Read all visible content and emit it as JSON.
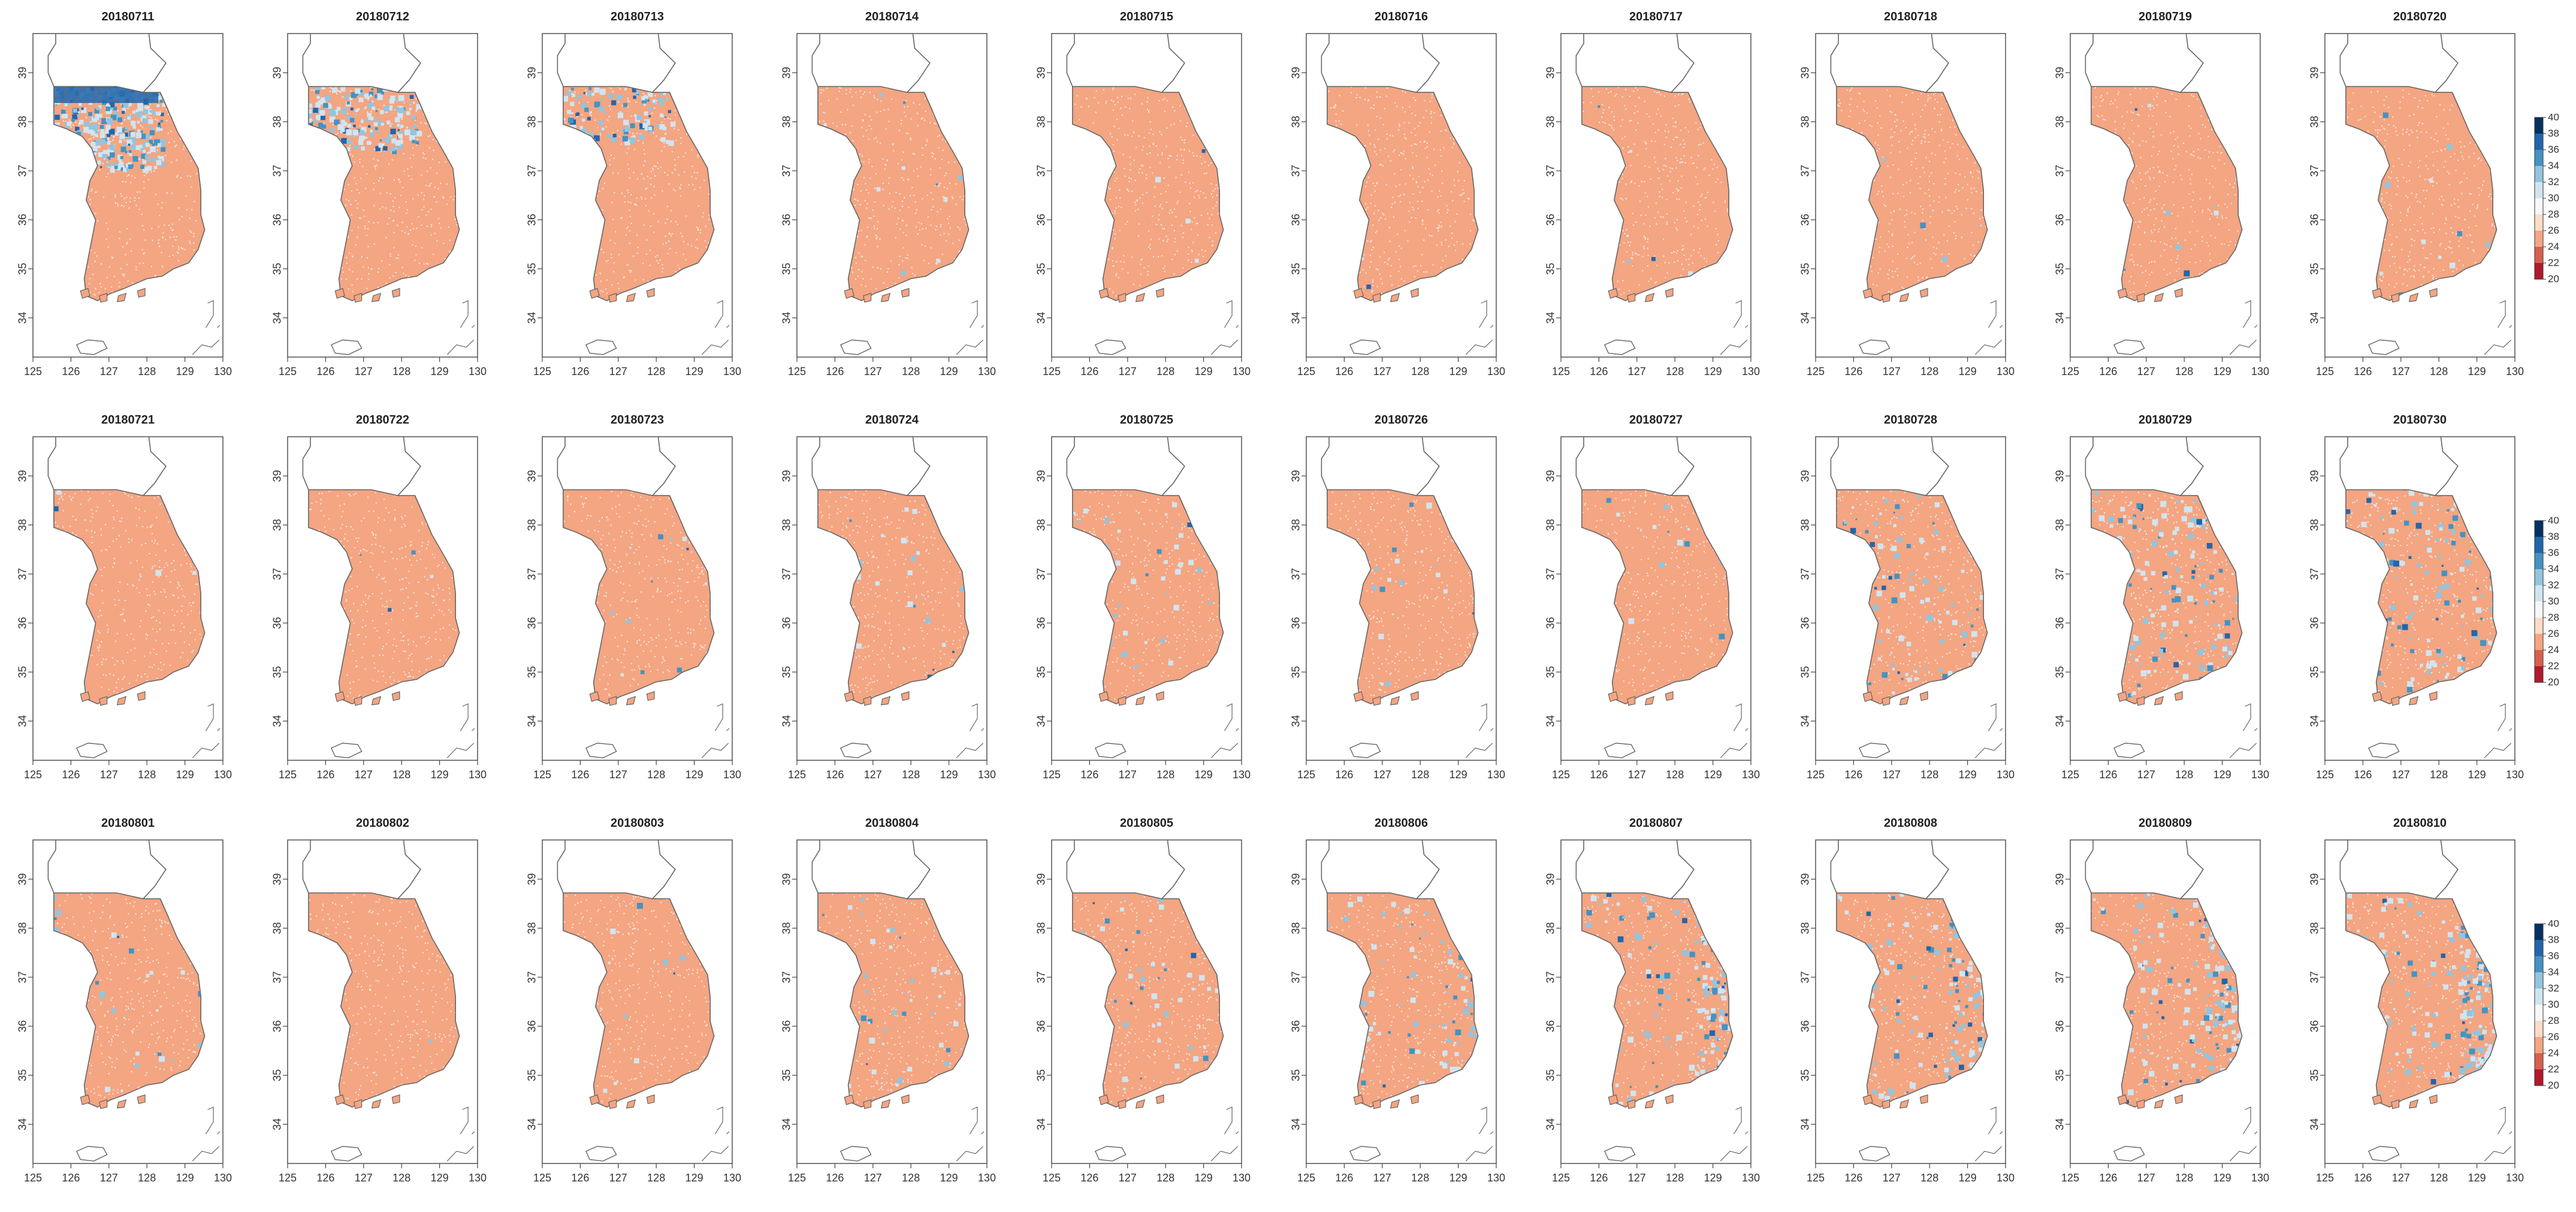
{
  "figure": {
    "dates": [
      [
        "20180711",
        "20180712",
        "20180713",
        "20180714",
        "20180715",
        "20180716",
        "20180717",
        "20180718",
        "20180719",
        "20180720"
      ],
      [
        "20180721",
        "20180722",
        "20180723",
        "20180724",
        "20180725",
        "20180726",
        "20180727",
        "20180728",
        "20180729",
        "20180730"
      ],
      [
        "20180801",
        "20180802",
        "20180803",
        "20180804",
        "20180805",
        "20180806",
        "20180807",
        "20180808",
        "20180809",
        "20180810"
      ]
    ],
    "x_ticks": [
      "125",
      "126",
      "127",
      "128",
      "129",
      "130"
    ],
    "y_ticks": [
      "34",
      "35",
      "36",
      "37",
      "38",
      "39"
    ],
    "lon_range": [
      125,
      130
    ],
    "lat_range": [
      33.2,
      39.8
    ],
    "colorbar": {
      "labels": [
        "20",
        "22",
        "24",
        "26",
        "28",
        "30",
        "32",
        "34",
        "36",
        "38",
        "40"
      ],
      "colors": [
        "#67001f",
        "#b2182b",
        "#d6604d",
        "#f4a582",
        "#fddbc7",
        "#f7f7f7",
        "#d1e5f0",
        "#92c5de",
        "#4393c3",
        "#2166ac",
        "#053061"
      ]
    },
    "base_fill": "#f4a582",
    "coast_color": "#666666",
    "panels_blue_level": [
      [
        0.95,
        0.55,
        0.3,
        0.03,
        0.02,
        0.02,
        0.02,
        0.02,
        0.03,
        0.05
      ],
      [
        0.02,
        0.02,
        0.06,
        0.1,
        0.12,
        0.08,
        0.05,
        0.35,
        0.55,
        0.45
      ],
      [
        0.08,
        0.02,
        0.05,
        0.15,
        0.18,
        0.35,
        0.6,
        0.6,
        0.65,
        0.75
      ]
    ]
  }
}
